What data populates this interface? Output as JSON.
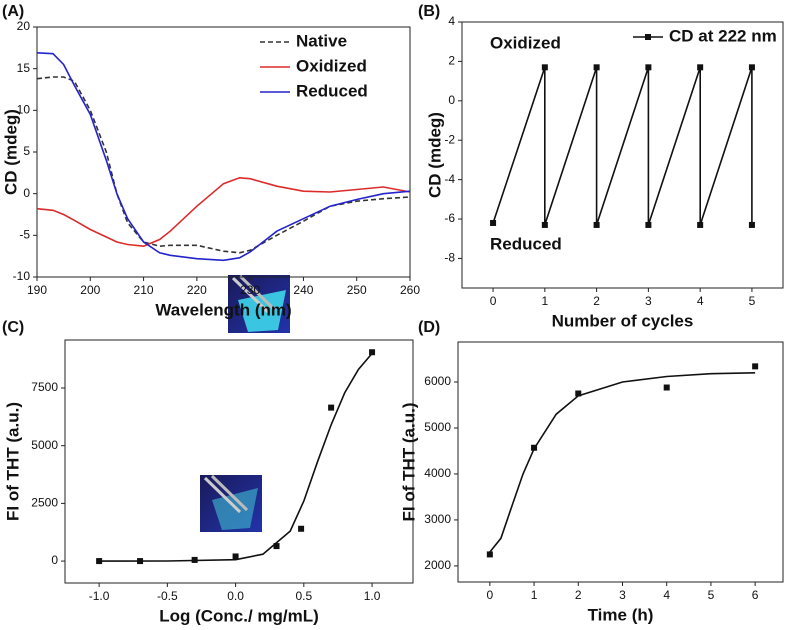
{
  "chart_data": [
    {
      "type": "line",
      "label": "(A)",
      "x_label": "Wavelength (nm)",
      "y_label": "CD (mdeg)",
      "xlim": [
        190,
        260
      ],
      "ylim": [
        -10,
        20
      ],
      "xticks": [
        190,
        200,
        210,
        220,
        230,
        240,
        250,
        260
      ],
      "yticks": [
        -10,
        -5,
        0,
        5,
        10,
        15,
        20
      ],
      "legend": "upper right",
      "x": [
        190,
        193,
        195,
        197,
        200,
        203,
        205,
        207,
        210,
        213,
        215,
        220,
        225,
        228,
        230,
        235,
        240,
        245,
        250,
        255,
        260
      ],
      "series": [
        {
          "name": "Native",
          "color": "#333333",
          "dash": true,
          "values": [
            13.8,
            14,
            14,
            13.5,
            10,
            5,
            0,
            -3.5,
            -5.8,
            -6.3,
            -6.2,
            -6.2,
            -6.9,
            -7.1,
            -6.8,
            -5,
            -3.3,
            -1.5,
            -0.9,
            -0.6,
            -0.4
          ]
        },
        {
          "name": "Oxidized",
          "color": "#dd2b2b",
          "values": [
            -1.8,
            -2,
            -2.5,
            -3.2,
            -4.3,
            -5.2,
            -5.8,
            -6.1,
            -6.3,
            -5.5,
            -4.5,
            -1.5,
            1.2,
            1.9,
            1.8,
            0.9,
            0.3,
            0.2,
            0.5,
            0.8,
            0.2
          ]
        },
        {
          "name": "Reduced",
          "color": "#2424cc",
          "values": [
            16.9,
            16.8,
            15.5,
            13,
            9.5,
            4,
            0,
            -3,
            -5.8,
            -7.1,
            -7.4,
            -7.8,
            -8,
            -7.7,
            -7,
            -4.5,
            -3,
            -1.5,
            -0.7,
            0,
            0.3
          ]
        }
      ]
    },
    {
      "type": "line",
      "label": "(B)",
      "x_label": "Number of cycles",
      "y_label": "CD (mdeg)",
      "xlim": [
        -0.6,
        5.6
      ],
      "ylim": [
        -9.5,
        4
      ],
      "xticks": [
        0,
        1,
        2,
        3,
        4,
        5
      ],
      "yticks": [
        -8,
        -6,
        -4,
        -2,
        0,
        2,
        4
      ],
      "legend": "upper right",
      "annotations": [
        "Oxidized",
        "Reduced"
      ],
      "series": [
        {
          "name": "CD at 222 nm",
          "color": "#111111",
          "marker": "square",
          "x": [
            0,
            1,
            1,
            2,
            2,
            3,
            3,
            4,
            4,
            5,
            5
          ],
          "values": [
            -6.2,
            1.7,
            -6.3,
            1.7,
            -6.3,
            1.7,
            -6.3,
            1.7,
            -6.3,
            1.7,
            -6.3
          ]
        }
      ]
    },
    {
      "type": "scatter",
      "label": "(C)",
      "x_label": "Log (Conc./ mg/mL)",
      "y_label": "FI of THT (a.u.)",
      "xlim": [
        -1.25,
        1.3
      ],
      "ylim": [
        -950,
        9580
      ],
      "xticks": [
        {
          "value": -1,
          "label": "-1.0"
        },
        -0.5,
        {
          "value": 0,
          "label": "0.0"
        },
        0.5,
        {
          "value": 1,
          "label": "1.0"
        }
      ],
      "yticks": [
        0,
        2500,
        5000,
        7500
      ],
      "series": [
        {
          "color": "#111111",
          "marker": "square",
          "line": false,
          "x": [
            -1,
            -0.7,
            -0.3,
            0,
            0.3,
            0.48,
            0.7,
            1.0
          ],
          "values": [
            0,
            0,
            50,
            200,
            650,
            1400,
            6650,
            9050
          ]
        },
        {
          "color": "#111111",
          "x": [
            -1,
            -0.5,
            0,
            0.2,
            0.4,
            0.5,
            0.6,
            0.7,
            0.8,
            0.9,
            1.0
          ],
          "values": [
            0,
            5,
            60,
            300,
            1300,
            2600,
            4300,
            5900,
            7300,
            8300,
            9000
          ]
        }
      ]
    },
    {
      "type": "scatter",
      "label": "(D)",
      "x_label": "Time (h)",
      "y_label": "FI of THT (a.u.)",
      "xlim": [
        -0.72,
        6.63
      ],
      "ylim": [
        1650,
        6870
      ],
      "xticks": [
        0,
        1,
        2,
        3,
        4,
        5,
        6
      ],
      "yticks": [
        2000,
        3000,
        4000,
        5000,
        6000
      ],
      "series": [
        {
          "color": "#111111",
          "marker": "square",
          "line": false,
          "x": [
            0,
            1,
            2,
            4,
            6
          ],
          "values": [
            2250,
            4570,
            5750,
            5880,
            6340
          ]
        },
        {
          "color": "#111111",
          "x": [
            0,
            0.25,
            0.5,
            0.75,
            1,
            1.5,
            2,
            3,
            4,
            5,
            6
          ],
          "values": [
            2300,
            2600,
            3300,
            4000,
            4550,
            5300,
            5700,
            6000,
            6120,
            6180,
            6200
          ]
        }
      ]
    }
  ]
}
